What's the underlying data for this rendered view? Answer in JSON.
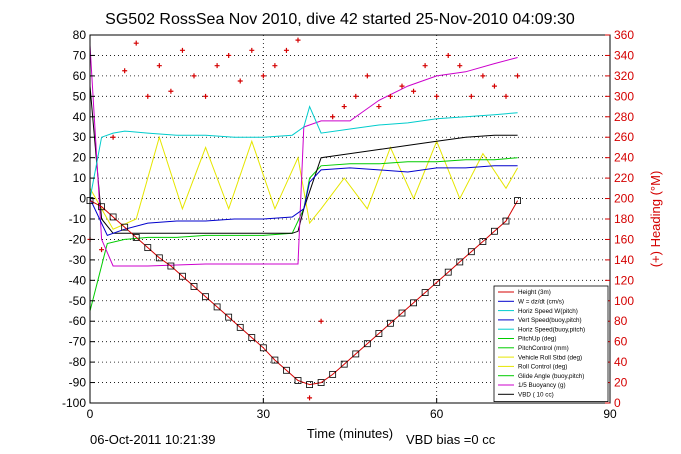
{
  "chart_data": {
    "type": "line",
    "title": "SG502 RossSea Nov 2010, dive 42 started 25-Nov-2010 04:09:30",
    "xlabel": "Time (minutes)",
    "ylabel_right": "(+) Heading (°M)",
    "xlim": [
      0,
      90
    ],
    "ylim_left": [
      -100,
      80
    ],
    "ylim_right": [
      0,
      360
    ],
    "xticks": [
      "0",
      "30",
      "60",
      "90"
    ],
    "xtick_values": [
      0,
      30,
      60,
      90
    ],
    "yticks_left": [
      "80",
      "70",
      "60",
      "50",
      "40",
      "30",
      "20",
      "10",
      "0",
      "-10",
      "-20",
      "-30",
      "-40",
      "-50",
      "-60",
      "-70",
      "-80",
      "-90",
      "-100"
    ],
    "yticks_left_values": [
      80,
      70,
      60,
      50,
      40,
      30,
      20,
      10,
      0,
      -10,
      -20,
      -30,
      -40,
      -50,
      -60,
      -70,
      -80,
      -90,
      -100
    ],
    "yticks_right": [
      "360",
      "340",
      "320",
      "300",
      "280",
      "260",
      "240",
      "220",
      "200",
      "180",
      "160",
      "140",
      "120",
      "100",
      "80",
      "60",
      "40",
      "20",
      "0"
    ],
    "yticks_right_values": [
      360,
      340,
      320,
      300,
      280,
      260,
      240,
      220,
      200,
      180,
      160,
      140,
      120,
      100,
      80,
      60,
      40,
      20,
      0
    ],
    "grid": true,
    "legend_position": "bottom-right",
    "legend": [
      {
        "name": "Height (3m)",
        "color": "#d40000"
      },
      {
        "name": "W = dz/dt (cm/s)",
        "color": "#0000cc"
      },
      {
        "name": "Horiz Speed W(pitch)",
        "color": "#00cccc"
      },
      {
        "name": "Vert Speed(buoy,pitch)",
        "color": "#0000cc"
      },
      {
        "name": "Horiz Speed(buoy,pitch)",
        "color": "#00cccc"
      },
      {
        "name": "PitchUp (deg)",
        "color": "#00cc00"
      },
      {
        "name": "PitchControl (mm)",
        "color": "#00cc00"
      },
      {
        "name": "Vehicle Roll Stbd (deg)",
        "color": "#e6e600"
      },
      {
        "name": "Roll Control (deg)",
        "color": "#e6e600"
      },
      {
        "name": "Glide Angle (buoy,pitch)",
        "color": "#00cc00"
      },
      {
        "name": "1/5 Buoyancy (g)",
        "color": "#cc00cc"
      },
      {
        "name": "VBD ( 10 cc)",
        "color": "#000000"
      }
    ],
    "series": [
      {
        "key": "height",
        "color": "#d40000",
        "axis": "left",
        "x": [
          0,
          2,
          4,
          6,
          8,
          10,
          12,
          14,
          16,
          18,
          20,
          22,
          24,
          26,
          28,
          30,
          32,
          34,
          36,
          38,
          40,
          42,
          44,
          46,
          48,
          50,
          52,
          54,
          56,
          58,
          60,
          62,
          64,
          66,
          68,
          70,
          72,
          74
        ],
        "values": [
          -1,
          -4,
          -9,
          -14,
          -19,
          -24,
          -29,
          -33,
          -38,
          -43,
          -48,
          -53,
          -58,
          -63,
          -68,
          -73,
          -79,
          -84,
          -89,
          -91,
          -90,
          -86,
          -81,
          -76,
          -71,
          -66,
          -61,
          -56,
          -51,
          -46,
          -41,
          -36,
          -31,
          -26,
          -21,
          -16,
          -11,
          -1
        ]
      },
      {
        "key": "heading",
        "color": "#d40000",
        "axis": "right",
        "x": [
          0,
          2,
          4,
          6,
          8,
          10,
          12,
          14,
          16,
          18,
          20,
          22,
          24,
          26,
          28,
          30,
          32,
          34,
          36,
          38,
          40,
          42,
          44,
          46,
          48,
          50,
          52,
          54,
          56,
          58,
          60,
          62,
          64,
          66,
          68,
          70,
          72,
          74
        ],
        "values": [
          160,
          150,
          260,
          325,
          352,
          300,
          330,
          305,
          345,
          320,
          300,
          330,
          340,
          315,
          345,
          320,
          330,
          345,
          355,
          5,
          80,
          280,
          290,
          300,
          320,
          290,
          300,
          310,
          305,
          330,
          300,
          340,
          330,
          300,
          320,
          310,
          300,
          320
        ]
      },
      {
        "key": "w",
        "color": "#0000cc",
        "axis": "left",
        "x": [
          0,
          3,
          6,
          10,
          15,
          20,
          25,
          30,
          35,
          37,
          38,
          40,
          45,
          50,
          55,
          60,
          65,
          70,
          74
        ],
        "values": [
          0,
          -18,
          -15,
          -12,
          -11,
          -11,
          -10,
          -10,
          -9,
          -5,
          8,
          14,
          15,
          14,
          13,
          15,
          15,
          16,
          16
        ]
      },
      {
        "key": "horiz_w",
        "color": "#00cccc",
        "axis": "left",
        "x": [
          0,
          2,
          4,
          6,
          10,
          15,
          20,
          25,
          30,
          35,
          37,
          38,
          40,
          45,
          50,
          55,
          60,
          65,
          70,
          74
        ],
        "values": [
          0,
          30,
          32,
          33,
          32,
          31,
          31,
          30,
          30,
          31,
          35,
          45,
          32,
          34,
          36,
          37,
          39,
          40,
          41,
          42
        ]
      },
      {
        "key": "pitch",
        "color": "#00cc00",
        "axis": "left",
        "x": [
          0,
          3,
          6,
          10,
          15,
          20,
          25,
          30,
          35,
          37,
          38,
          40,
          45,
          50,
          55,
          60,
          65,
          70,
          74
        ],
        "values": [
          -55,
          -22,
          -20,
          -19,
          -19,
          -18,
          -18,
          -18,
          -17,
          -5,
          10,
          16,
          17,
          17,
          18,
          18,
          19,
          19,
          20
        ]
      },
      {
        "key": "roll",
        "color": "#e6e600",
        "axis": "left",
        "x": [
          0,
          4,
          8,
          12,
          16,
          20,
          24,
          28,
          32,
          36,
          38,
          40,
          44,
          48,
          52,
          56,
          60,
          64,
          68,
          72,
          74
        ],
        "values": [
          5,
          -15,
          -10,
          30,
          -5,
          25,
          -5,
          28,
          -5,
          20,
          -12,
          -5,
          10,
          -5,
          25,
          0,
          28,
          0,
          22,
          5,
          15
        ]
      },
      {
        "key": "buoyancy",
        "color": "#cc00cc",
        "axis": "left",
        "x": [
          0,
          2,
          4,
          10,
          20,
          30,
          35,
          36,
          37,
          40,
          45,
          50,
          55,
          60,
          65,
          70,
          74
        ],
        "values": [
          75,
          -20,
          -33,
          -33,
          -32,
          -32,
          -32,
          -32,
          35,
          38,
          38,
          48,
          55,
          60,
          62,
          66,
          69
        ]
      },
      {
        "key": "vbd",
        "color": "#000000",
        "axis": "left",
        "x": [
          0,
          2,
          4,
          10,
          20,
          30,
          35,
          36,
          37,
          40,
          45,
          50,
          55,
          60,
          65,
          70,
          74
        ],
        "values": [
          55,
          -10,
          -17,
          -17,
          -17,
          -17,
          -17,
          -16,
          -5,
          20,
          22,
          24,
          26,
          28,
          30,
          31,
          31
        ]
      }
    ]
  },
  "footer": {
    "timestamp": "06-Oct-2011 10:21:39",
    "vbd_bias": "VBD bias =0 cc"
  }
}
